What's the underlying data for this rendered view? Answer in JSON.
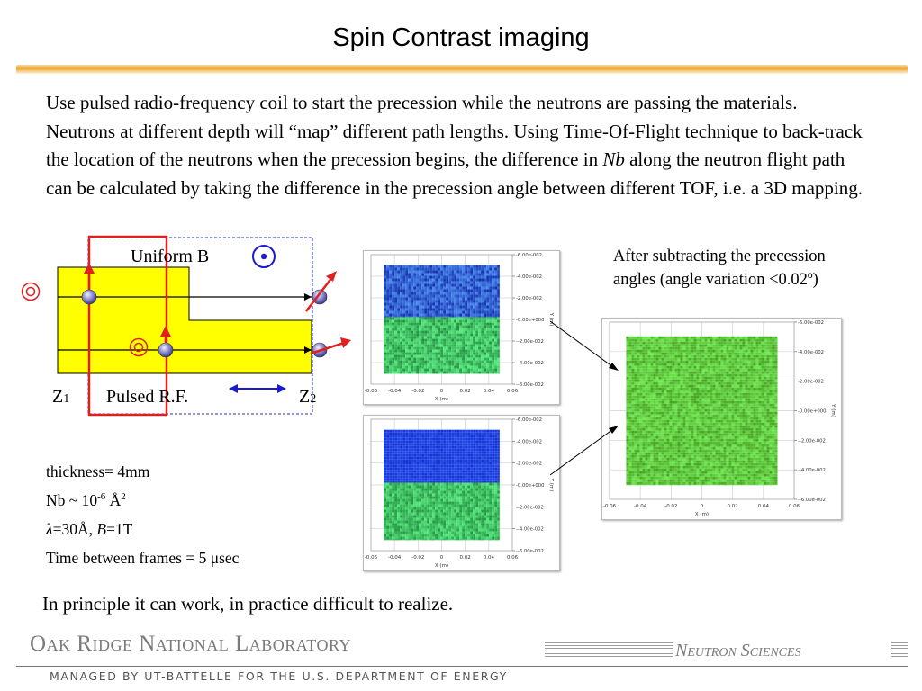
{
  "slide": {
    "title": "Spin Contrast imaging",
    "intro_part1": "Use pulsed radio-frequency coil to start the precession while the neutrons are passing the materials. Neutrons at different depth will “map” different path lengths. Using Time-Of-Flight technique to back-track the location of the neutrons when the precession begins, the difference in ",
    "intro_nb": "Nb",
    "intro_part2": " along the neutron flight path can be calculated by taking the difference in the precession angle between different TOF, i.e. a 3D mapping.",
    "diagram": {
      "uniform_b": "Uniform B",
      "z1_main": "Z",
      "z1_sub": "1",
      "pulsed_rf": "Pulsed R.F.",
      "z2_main": "Z",
      "z2_sub": "2"
    },
    "caption": "After subtracting the precession angles (angle variation <0.02º)",
    "params": {
      "thickness": "thickness= 4mm",
      "nb_prefix": "Nb ~ 10",
      "nb_exp": "-6",
      "nb_unit": " Å",
      "nb_unit_exp": "2",
      "lambda_symbol": "λ",
      "lambda_rest": "=30Å, ",
      "b_symbol": "B",
      "b_rest": "=1T",
      "time_frames": "Time between frames = 5 μsec"
    },
    "conclusion": "In principle it can work, in practice difficult to realize."
  },
  "plots": {
    "x_ticks": [
      "-0.06",
      "-0.04",
      "-0.02",
      "0",
      "0.02",
      "0.04",
      "0.06"
    ],
    "y_ticks": [
      "6.00e-002",
      "4.00e-002",
      "2.00e-002",
      "0.00e+000",
      "-2.00e-002",
      "-4.00e-002",
      "-6.00e-002"
    ],
    "x_label": "X (m)",
    "y_label": "Y (m)",
    "colors": {
      "upper_noisy": "#2f5fd0",
      "upper_solid": "#1a3ee0",
      "lower": "#3cc060",
      "subtracted": "#5cc83a"
    }
  },
  "footer": {
    "org": "Oak Ridge National Laboratory",
    "unit": "Neutron Sciences",
    "sub": "MANAGED BY UT-BATTELLE FOR THE U.S. DEPARTMENT OF ENERGY"
  },
  "colors": {
    "accent_red": "#e02020",
    "sample_yellow": "#ffff00",
    "arrow_blue": "#1a1ad0"
  }
}
